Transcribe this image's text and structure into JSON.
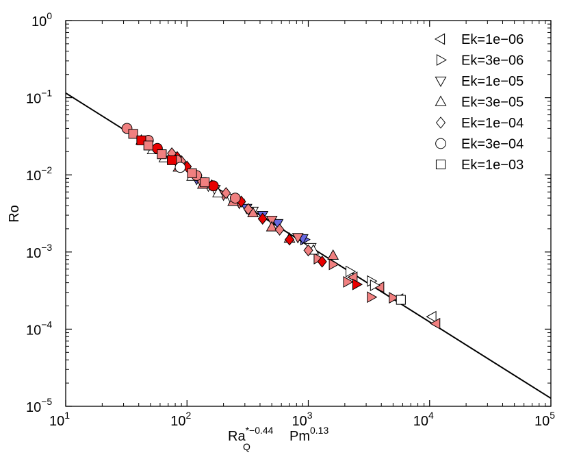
{
  "chart_data": {
    "type": "scatter",
    "title": "",
    "xscale": "log",
    "yscale": "log",
    "xlim": [
      10,
      100000
    ],
    "ylim": [
      1e-05,
      1
    ],
    "xlabel": {
      "base": "Ra",
      "sup1": "*−0.44",
      "sub1": "Q",
      "mid": "Pm",
      "sup2": "0.13"
    },
    "ylabel": "Ro",
    "x_ticks": [
      {
        "value": 10,
        "base": "10",
        "exp": "1"
      },
      {
        "value": 100,
        "base": "10",
        "exp": "2"
      },
      {
        "value": 1000,
        "base": "10",
        "exp": "3"
      },
      {
        "value": 10000,
        "base": "10",
        "exp": "4"
      },
      {
        "value": 100000,
        "base": "10",
        "exp": "5"
      }
    ],
    "y_ticks": [
      {
        "value": 1,
        "base": "10",
        "exp": "0"
      },
      {
        "value": 0.1,
        "base": "10",
        "exp": "−1"
      },
      {
        "value": 0.01,
        "base": "10",
        "exp": "−2"
      },
      {
        "value": 0.001,
        "base": "10",
        "exp": "−3"
      },
      {
        "value": 0.0001,
        "base": "10",
        "exp": "−4"
      },
      {
        "value": 1e-05,
        "base": "10",
        "exp": "−5"
      }
    ],
    "fit_line": {
      "x": [
        10,
        100000
      ],
      "y": [
        0.115,
        1.27e-05
      ],
      "color": "#000000"
    },
    "legend": {
      "position": "top-right",
      "entries": [
        {
          "label": "Ek=1e−06",
          "marker": "triangle-left"
        },
        {
          "label": "Ek=3e−06",
          "marker": "triangle-right"
        },
        {
          "label": "Ek=1e−05",
          "marker": "triangle-down"
        },
        {
          "label": "Ek=3e−05",
          "marker": "triangle-up"
        },
        {
          "label": "Ek=1e−04",
          "marker": "diamond"
        },
        {
          "label": "Ek=3e−04",
          "marker": "circle"
        },
        {
          "label": "Ek=1e−03",
          "marker": "square"
        }
      ]
    },
    "color_map": {
      "white": "#ffffff",
      "pink": "#f08080",
      "red": "#e80000",
      "blue": "#6868e0"
    },
    "series": [
      {
        "name": "Ek=1e−06",
        "marker": "triangle-left",
        "points": [
          {
            "x": 10500,
            "y": 0.000145,
            "c": "white"
          },
          {
            "x": 11300,
            "y": 0.000118,
            "c": "pink"
          },
          {
            "x": 5600,
            "y": 0.000245,
            "c": "white"
          },
          {
            "x": 3900,
            "y": 0.00035,
            "c": "pink"
          },
          {
            "x": 2350,
            "y": 0.00047,
            "c": "pink"
          }
        ]
      },
      {
        "name": "Ek=3e−06",
        "marker": "triangle-right",
        "points": [
          {
            "x": 2200,
            "y": 0.00056,
            "c": "white"
          },
          {
            "x": 3300,
            "y": 0.00042,
            "c": "white"
          },
          {
            "x": 3500,
            "y": 0.00037,
            "c": "white"
          },
          {
            "x": 5000,
            "y": 0.000255,
            "c": "pink"
          },
          {
            "x": 3300,
            "y": 0.00026,
            "c": "pink"
          },
          {
            "x": 2100,
            "y": 0.00041,
            "c": "pink"
          },
          {
            "x": 1600,
            "y": 0.00069,
            "c": "pink"
          },
          {
            "x": 930,
            "y": 0.00145,
            "c": "blue"
          },
          {
            "x": 2500,
            "y": 0.00038,
            "c": "red"
          },
          {
            "x": 1200,
            "y": 0.00082,
            "c": "pink"
          }
        ]
      },
      {
        "name": "Ek=1e−05",
        "marker": "triangle-down",
        "points": [
          {
            "x": 1050,
            "y": 0.00115,
            "c": "white"
          },
          {
            "x": 900,
            "y": 0.0015,
            "c": "blue"
          },
          {
            "x": 820,
            "y": 0.00155,
            "c": "pink"
          },
          {
            "x": 560,
            "y": 0.00235,
            "c": "blue"
          },
          {
            "x": 500,
            "y": 0.0026,
            "c": "pink"
          },
          {
            "x": 420,
            "y": 0.003,
            "c": "blue"
          },
          {
            "x": 350,
            "y": 0.0034,
            "c": "white"
          },
          {
            "x": 310,
            "y": 0.0037,
            "c": "blue"
          },
          {
            "x": 270,
            "y": 0.0043,
            "c": "pink"
          },
          {
            "x": 230,
            "y": 0.005,
            "c": "white"
          },
          {
            "x": 200,
            "y": 0.0055,
            "c": "pink"
          },
          {
            "x": 170,
            "y": 0.0065,
            "c": "white"
          },
          {
            "x": 150,
            "y": 0.0072,
            "c": "white"
          },
          {
            "x": 120,
            "y": 0.0088,
            "c": "blue"
          },
          {
            "x": 130,
            "y": 0.0082,
            "c": "pink"
          }
        ]
      },
      {
        "name": "Ek=3e−05",
        "marker": "triangle-up",
        "points": [
          {
            "x": 1600,
            "y": 0.0009,
            "c": "pink"
          },
          {
            "x": 1100,
            "y": 0.00105,
            "c": "white"
          },
          {
            "x": 700,
            "y": 0.0015,
            "c": "pink"
          },
          {
            "x": 500,
            "y": 0.0021,
            "c": "pink"
          },
          {
            "x": 350,
            "y": 0.0032,
            "c": "pink"
          },
          {
            "x": 240,
            "y": 0.0045,
            "c": "pink"
          },
          {
            "x": 180,
            "y": 0.0058,
            "c": "white"
          },
          {
            "x": 135,
            "y": 0.0075,
            "c": "pink"
          },
          {
            "x": 110,
            "y": 0.0095,
            "c": "white"
          },
          {
            "x": 85,
            "y": 0.0125,
            "c": "pink"
          },
          {
            "x": 65,
            "y": 0.0165,
            "c": "white"
          },
          {
            "x": 52,
            "y": 0.021,
            "c": "white"
          },
          {
            "x": 42,
            "y": 0.028,
            "c": "white"
          }
        ]
      },
      {
        "name": "Ek=1e−04",
        "marker": "diamond",
        "points": [
          {
            "x": 1300,
            "y": 0.00075,
            "c": "red"
          },
          {
            "x": 1000,
            "y": 0.00105,
            "c": "pink"
          },
          {
            "x": 700,
            "y": 0.00145,
            "c": "red"
          },
          {
            "x": 580,
            "y": 0.00195,
            "c": "pink"
          },
          {
            "x": 420,
            "y": 0.0027,
            "c": "red"
          },
          {
            "x": 320,
            "y": 0.0036,
            "c": "pink"
          },
          {
            "x": 280,
            "y": 0.0045,
            "c": "red"
          },
          {
            "x": 210,
            "y": 0.0058,
            "c": "pink"
          },
          {
            "x": 160,
            "y": 0.0073,
            "c": "red"
          },
          {
            "x": 120,
            "y": 0.0098,
            "c": "pink"
          },
          {
            "x": 100,
            "y": 0.0128,
            "c": "red"
          },
          {
            "x": 90,
            "y": 0.015,
            "c": "pink"
          },
          {
            "x": 83,
            "y": 0.017,
            "c": "red"
          },
          {
            "x": 75,
            "y": 0.019,
            "c": "pink"
          }
        ]
      },
      {
        "name": "Ek=3e−04",
        "marker": "circle",
        "points": [
          {
            "x": 32,
            "y": 0.04,
            "c": "pink"
          },
          {
            "x": 48,
            "y": 0.028,
            "c": "pink"
          },
          {
            "x": 57,
            "y": 0.022,
            "c": "red"
          },
          {
            "x": 82,
            "y": 0.0155,
            "c": "pink"
          },
          {
            "x": 88,
            "y": 0.0125,
            "c": "white"
          },
          {
            "x": 120,
            "y": 0.0098,
            "c": "pink"
          },
          {
            "x": 165,
            "y": 0.0072,
            "c": "red"
          },
          {
            "x": 250,
            "y": 0.005,
            "c": "pink"
          }
        ]
      },
      {
        "name": "Ek=1e−03",
        "marker": "square",
        "points": [
          {
            "x": 36,
            "y": 0.034,
            "c": "pink"
          },
          {
            "x": 42,
            "y": 0.028,
            "c": "red"
          },
          {
            "x": 48,
            "y": 0.024,
            "c": "pink"
          },
          {
            "x": 62,
            "y": 0.0185,
            "c": "pink"
          },
          {
            "x": 75,
            "y": 0.0155,
            "c": "red"
          },
          {
            "x": 110,
            "y": 0.0105,
            "c": "pink"
          },
          {
            "x": 140,
            "y": 0.008,
            "c": "pink"
          },
          {
            "x": 5800,
            "y": 0.00024,
            "c": "white"
          }
        ]
      }
    ]
  }
}
